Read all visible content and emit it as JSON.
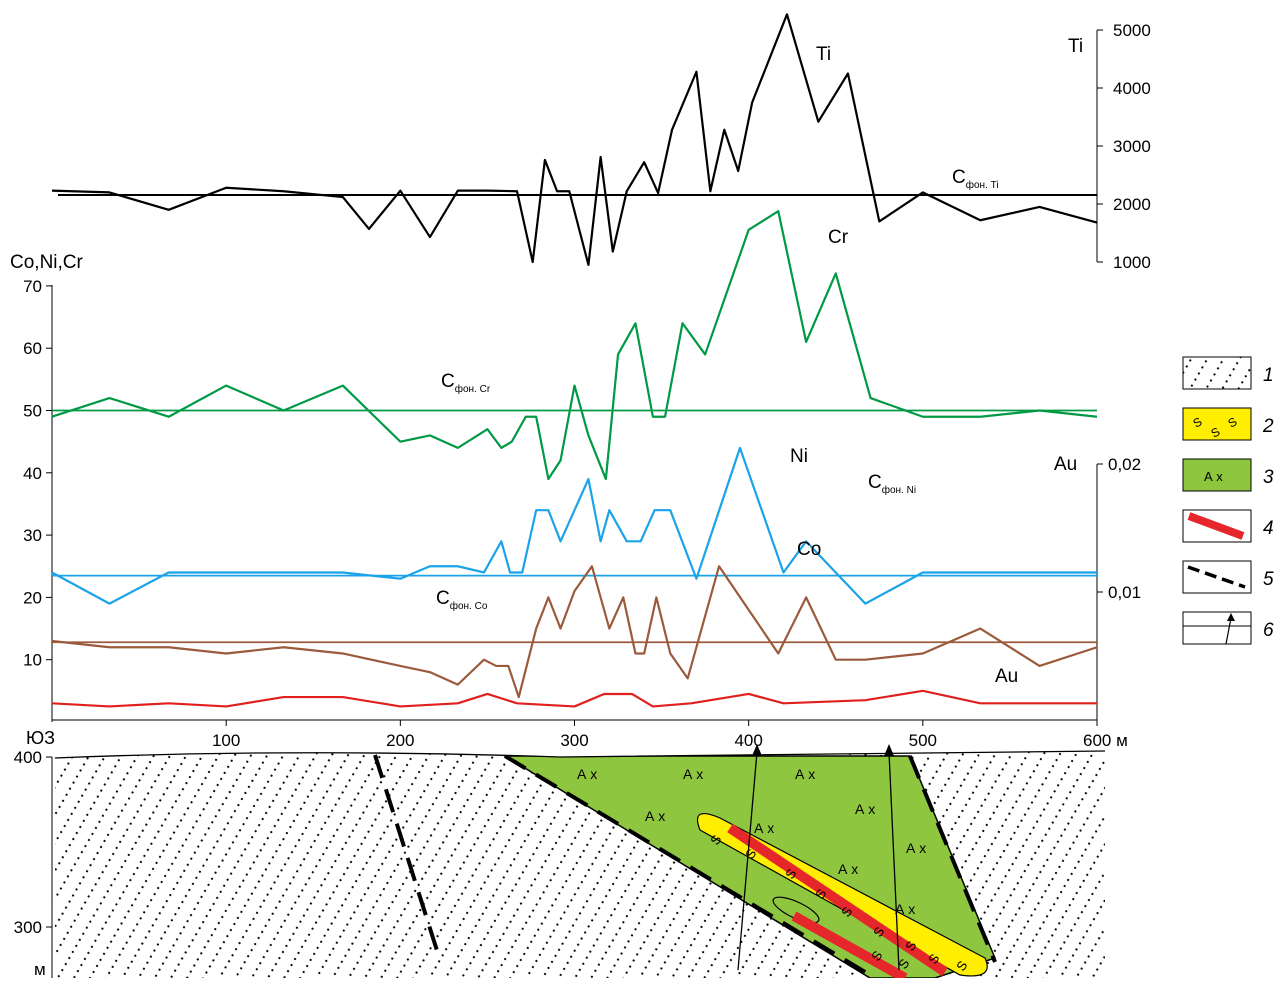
{
  "chart_data": [
    {
      "type": "line",
      "panel": "titanium",
      "ylabel": "Ti",
      "y_ticks": [
        "1000",
        "2000",
        "3000",
        "4000",
        "5000"
      ],
      "ylim": [
        1000,
        5000
      ],
      "color": "#000000",
      "series": [
        {
          "name": "Ti",
          "x": [
            0,
            33,
            67,
            100,
            133,
            167,
            182,
            200,
            217,
            233,
            250,
            267,
            276,
            283,
            290,
            297,
            308,
            315,
            322,
            330,
            340,
            348,
            356,
            370,
            378,
            386,
            394,
            402,
            422,
            440,
            457,
            475,
            500,
            533,
            567,
            600
          ],
          "y": [
            2230,
            2200,
            1900,
            2280,
            2220,
            2120,
            1570,
            2230,
            1430,
            2230,
            2230,
            2220,
            1000,
            2760,
            2220,
            2220,
            950,
            2810,
            1180,
            2220,
            2720,
            2190,
            3280,
            4280,
            2220,
            3280,
            2570,
            3750,
            5270,
            3420,
            4250,
            1700,
            2200,
            1720,
            1950,
            1680
          ]
        }
      ],
      "reference_lines": [
        {
          "label": "C",
          "subscript": "фон. Ti",
          "y": 2140
        }
      ],
      "series_label": "Ti"
    },
    {
      "type": "line",
      "panel": "Co-Ni-Cr-Au",
      "xlabel": "м",
      "x_ticks": [
        "100",
        "200",
        "300",
        "400",
        "500",
        "600 м"
      ],
      "xlim": [
        0,
        600
      ],
      "ylabel": "Co,Ni,Cr",
      "y_ticks": [
        "10",
        "20",
        "30",
        "40",
        "50",
        "60",
        "70"
      ],
      "ylim": [
        0,
        70
      ],
      "secondary_ylabel": "Au",
      "secondary_y_ticks": [
        "0,01",
        "0,02"
      ],
      "secondary_ylim": [
        0,
        0.02
      ],
      "series": [
        {
          "name": "Cr",
          "color": "#009944",
          "x": [
            0,
            33,
            67,
            100,
            133,
            167,
            200,
            217,
            233,
            250,
            258,
            264,
            272,
            278,
            285,
            292,
            300,
            308,
            318,
            325,
            335,
            345,
            352,
            362,
            375,
            400,
            417,
            433,
            450,
            470,
            500,
            533,
            567,
            600
          ],
          "y": [
            49,
            52,
            49,
            54,
            50,
            54,
            45,
            46,
            44,
            47,
            44,
            45,
            49,
            49,
            39,
            42,
            54,
            46,
            39,
            59,
            64,
            49,
            49,
            64,
            59,
            79,
            82,
            61,
            72,
            52,
            49,
            49,
            50,
            49
          ]
        },
        {
          "name": "Ni",
          "color": "#1aa3e8",
          "x": [
            0,
            33,
            67,
            100,
            133,
            167,
            200,
            217,
            233,
            248,
            258,
            263,
            270,
            278,
            285,
            292,
            300,
            308,
            315,
            320,
            330,
            338,
            346,
            355,
            370,
            395,
            420,
            433,
            450,
            467,
            500,
            533,
            567,
            600
          ],
          "y": [
            24,
            19,
            24,
            24,
            24,
            24,
            23,
            25,
            25,
            24,
            29,
            24,
            24,
            34,
            34,
            29,
            34,
            39,
            29,
            34,
            29,
            29,
            34,
            34,
            23,
            44,
            24,
            29,
            24,
            19,
            24,
            24,
            24,
            24
          ]
        },
        {
          "name": "Co",
          "color": "#9b5a3c",
          "x": [
            0,
            33,
            67,
            100,
            133,
            167,
            200,
            217,
            233,
            248,
            255,
            262,
            268,
            278,
            285,
            292,
            300,
            310,
            320,
            328,
            335,
            340,
            347,
            355,
            365,
            383,
            417,
            433,
            450,
            467,
            500,
            533,
            567,
            600
          ],
          "y": [
            13,
            12,
            12,
            11,
            12,
            11,
            9,
            8,
            6,
            10,
            9,
            9,
            4,
            15,
            20,
            15,
            21,
            25,
            15,
            20,
            11,
            11,
            20,
            11,
            7,
            25,
            11,
            20,
            10,
            10,
            11,
            15,
            9,
            12
          ]
        },
        {
          "name": "Au",
          "color": "#e0201f",
          "x": [
            0,
            33,
            67,
            100,
            133,
            167,
            200,
            233,
            250,
            267,
            300,
            317,
            333,
            345,
            367,
            400,
            420,
            467,
            500,
            533,
            567,
            600
          ],
          "y": [
            3,
            2.5,
            3,
            2.5,
            4,
            4,
            2.5,
            3,
            4.5,
            3,
            2.5,
            4.5,
            4.5,
            2.5,
            3,
            4.5,
            3,
            3.5,
            5,
            3,
            3,
            3
          ]
        }
      ],
      "reference_lines": [
        {
          "label": "C",
          "subscript": "фон. Cr",
          "y": 50,
          "color": "#009944"
        },
        {
          "label": "C",
          "subscript": "фон. Ni",
          "y": 23.5,
          "color": "#1aa3e8"
        },
        {
          "label": "C",
          "subscript": "фон. Co",
          "y": 12.8,
          "color": "#9b5a3c"
        }
      ]
    }
  ],
  "section": {
    "direction_label": "ЮЗ",
    "y_ticks": [
      "400",
      "300"
    ],
    "unit_label": "м",
    "rock_label": "А х",
    "sulfide_label": "S"
  },
  "legend": {
    "items": [
      {
        "number": "1",
        "kind": "dotted-rock"
      },
      {
        "number": "2",
        "kind": "sulfide-zone",
        "symbol": "S"
      },
      {
        "number": "3",
        "kind": "amphibolite",
        "symbol": "А х",
        "color": "#8ec63f"
      },
      {
        "number": "4",
        "kind": "ore-body",
        "color": "#e5262b"
      },
      {
        "number": "5",
        "kind": "fault"
      },
      {
        "number": "6",
        "kind": "borehole"
      }
    ]
  },
  "colors": {
    "amphibolite": "#8ec63f",
    "sulfide": "#ffee00",
    "ore": "#e5262b",
    "cr": "#009944",
    "ni": "#1aa3e8",
    "co": "#9b5a3c",
    "au": "#e0201f"
  }
}
